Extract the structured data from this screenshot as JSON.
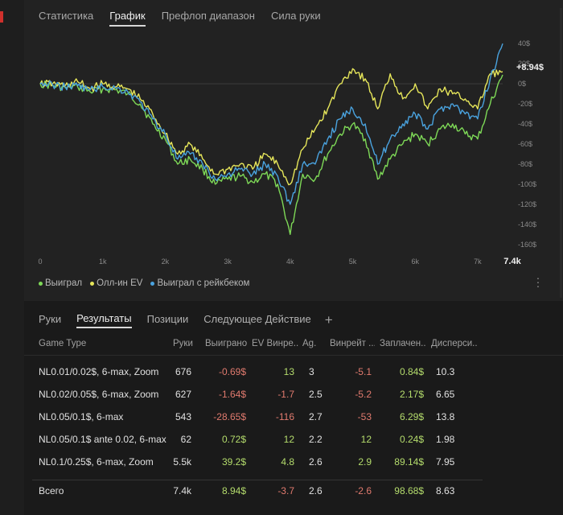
{
  "tabs": [
    {
      "label": "Статистика",
      "active": false
    },
    {
      "label": "График",
      "active": true
    },
    {
      "label": "Префлоп диапазон",
      "active": false
    },
    {
      "label": "Сила руки",
      "active": false
    }
  ],
  "chart_data": {
    "type": "line",
    "title": "",
    "xlabel": "",
    "ylabel": "",
    "x_ticks": [
      "0",
      "1k",
      "2k",
      "3k",
      "4k",
      "5k",
      "6k",
      "7k"
    ],
    "x_end_label": "7.4k",
    "xlim": [
      0,
      7400
    ],
    "y_ticks": [
      "40$",
      "20$",
      "0$",
      "-20$",
      "-40$",
      "-60$",
      "-80$",
      "-100$",
      "-120$",
      "-140$",
      "-160$"
    ],
    "ylim": [
      -165,
      45
    ],
    "end_value_label": "+8.94$",
    "colors": {
      "won": "#7ed957",
      "allin_ev": "#e6e65a",
      "rakeback": "#4aa3df"
    },
    "series": [
      {
        "name": "Выиграл",
        "color": "#7ed957",
        "x": [
          0,
          200,
          400,
          600,
          800,
          1000,
          1200,
          1400,
          1600,
          1800,
          2000,
          2200,
          2400,
          2600,
          2800,
          3000,
          3200,
          3400,
          3600,
          3800,
          4000,
          4200,
          4400,
          4600,
          4800,
          5000,
          5200,
          5400,
          5600,
          5800,
          6000,
          6200,
          6400,
          6600,
          6800,
          7000,
          7200,
          7400
        ],
        "y": [
          0,
          -2,
          -4,
          -3,
          -8,
          -5,
          -6,
          -10,
          -20,
          -40,
          -55,
          -80,
          -75,
          -85,
          -100,
          -95,
          -92,
          -98,
          -90,
          -100,
          -150,
          -90,
          -95,
          -70,
          -50,
          -40,
          -55,
          -95,
          -75,
          -60,
          -50,
          -60,
          -45,
          -40,
          -50,
          -55,
          -20,
          8.94
        ]
      },
      {
        "name": "Олл-ин EV",
        "color": "#e6e65a",
        "x": [
          0,
          200,
          400,
          600,
          800,
          1000,
          1200,
          1400,
          1600,
          1800,
          2000,
          2200,
          2400,
          2600,
          2800,
          3000,
          3200,
          3400,
          3600,
          3800,
          4000,
          4200,
          4400,
          4600,
          4800,
          5000,
          5200,
          5400,
          5600,
          5800,
          6000,
          6200,
          6400,
          6600,
          6800,
          7000,
          7200,
          7400
        ],
        "y": [
          0,
          0,
          -2,
          2,
          -5,
          0,
          -3,
          -5,
          -15,
          -30,
          -50,
          -70,
          -60,
          -75,
          -90,
          -85,
          -80,
          -85,
          -70,
          -80,
          -100,
          -65,
          -45,
          -25,
          0,
          15,
          5,
          -25,
          10,
          -15,
          0,
          -25,
          -5,
          -10,
          -15,
          -25,
          10,
          12
        ]
      },
      {
        "name": "Выиграл с рейкбеком",
        "color": "#4aa3df",
        "x": [
          0,
          200,
          400,
          600,
          800,
          1000,
          1200,
          1400,
          1600,
          1800,
          2000,
          2200,
          2400,
          2600,
          2800,
          3000,
          3200,
          3400,
          3600,
          3800,
          4000,
          4200,
          4400,
          4600,
          4800,
          5000,
          5200,
          5400,
          5600,
          5800,
          6000,
          6200,
          6400,
          6600,
          6800,
          7000,
          7200,
          7400
        ],
        "y": [
          0,
          -1,
          -3,
          -2,
          -6,
          -3,
          -4,
          -8,
          -18,
          -35,
          -50,
          -75,
          -70,
          -80,
          -95,
          -90,
          -85,
          -90,
          -80,
          -92,
          -120,
          -80,
          -80,
          -55,
          -35,
          -25,
          -40,
          -80,
          -55,
          -40,
          -30,
          -45,
          -25,
          -20,
          -30,
          -35,
          5,
          40
        ]
      }
    ]
  },
  "legend": [
    {
      "label": "Выиграл",
      "color": "#7ed957"
    },
    {
      "label": "Олл-ин EV",
      "color": "#e6e65a"
    },
    {
      "label": "Выиграл с рейкбеком",
      "color": "#4aa3df"
    }
  ],
  "bottom_tabs": [
    {
      "label": "Руки",
      "active": false
    },
    {
      "label": "Результаты",
      "active": true
    },
    {
      "label": "Позиции",
      "active": false
    },
    {
      "label": "Следующее Действие",
      "active": false
    }
  ],
  "add_tab": "+",
  "table": {
    "headers": [
      "Game Type",
      "Руки",
      "Выиграно",
      "EV Винре...",
      "Ag.",
      "Винрейт ...",
      "Заплачен...",
      "Дисперси..."
    ],
    "rows": [
      {
        "game": "NL0.01/0.02$, 6-max, Zoom",
        "hands": "676",
        "won": "-0.69$",
        "ev": "13",
        "ag": "3",
        "winrate": "-5.1",
        "paid": "0.84$",
        "disp": "10.3"
      },
      {
        "game": "NL0.02/0.05$, 6-max, Zoom",
        "hands": "627",
        "won": "-1.64$",
        "ev": "-1.7",
        "ag": "2.5",
        "winrate": "-5.2",
        "paid": "2.17$",
        "disp": "6.65"
      },
      {
        "game": "NL0.05/0.1$, 6-max",
        "hands": "543",
        "won": "-28.65$",
        "ev": "-116",
        "ag": "2.7",
        "winrate": "-53",
        "paid": "6.29$",
        "disp": "13.8"
      },
      {
        "game": "NL0.05/0.1$ ante 0.02, 6-max",
        "hands": "62",
        "won": "0.72$",
        "ev": "12",
        "ag": "2.2",
        "winrate": "12",
        "paid": "0.24$",
        "disp": "1.98"
      },
      {
        "game": "NL0.1/0.25$, 6-max, Zoom",
        "hands": "5.5k",
        "won": "39.2$",
        "ev": "4.8",
        "ag": "2.6",
        "winrate": "2.9",
        "paid": "89.14$",
        "disp": "7.95"
      }
    ],
    "total": {
      "game": "Всего",
      "hands": "7.4k",
      "won": "8.94$",
      "ev": "-3.7",
      "ag": "2.6",
      "winrate": "-2.6",
      "paid": "98.68$",
      "disp": "8.63"
    }
  }
}
